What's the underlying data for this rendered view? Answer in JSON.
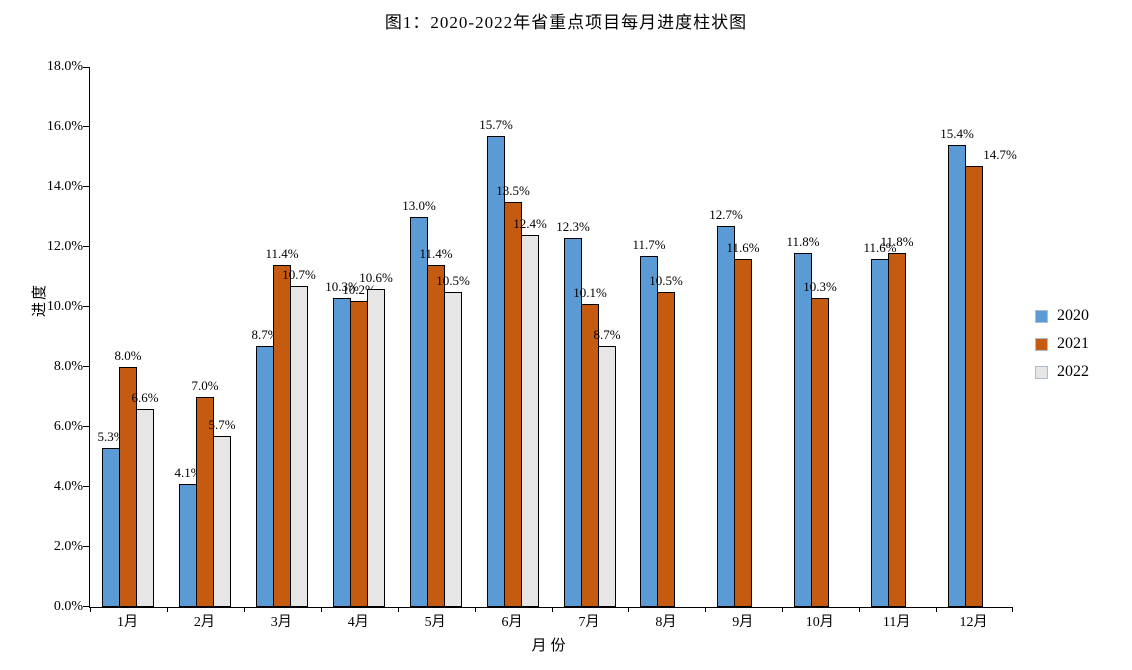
{
  "chart_data": {
    "type": "bar",
    "title": "图1：2020-2022年省重点项目每月进度柱状图",
    "xlabel": "月份",
    "ylabel": "进度",
    "categories": [
      "1月",
      "2月",
      "3月",
      "4月",
      "5月",
      "6月",
      "7月",
      "8月",
      "9月",
      "10月",
      "11月",
      "12月"
    ],
    "series": [
      {
        "name": "2020",
        "color": "#5B9BD5",
        "values": [
          5.3,
          4.1,
          8.7,
          10.3,
          13.0,
          15.7,
          12.3,
          11.7,
          12.7,
          11.8,
          11.6,
          15.4
        ]
      },
      {
        "name": "2021",
        "color": "#C55A11",
        "values": [
          8.0,
          7.0,
          11.4,
          10.2,
          11.4,
          13.5,
          10.1,
          10.5,
          11.6,
          10.3,
          11.8,
          14.7
        ]
      },
      {
        "name": "2022",
        "color": "#E7E6E6",
        "values": [
          6.6,
          5.7,
          10.7,
          10.6,
          10.5,
          12.4,
          8.7,
          null,
          null,
          null,
          null,
          null
        ]
      }
    ],
    "value_suffix": "%",
    "value_decimals": 1,
    "ylim": [
      0,
      18
    ],
    "y_tick_step": 2,
    "y_tick_labels": [
      "0.0%",
      "2.0%",
      "4.0%",
      "6.0%",
      "8.0%",
      "10.0%",
      "12.0%",
      "14.0%",
      "16.0%",
      "18.0%"
    ],
    "grid": false,
    "legend_position": "right",
    "bar_border_color": "#000000",
    "label_adjustments": [
      {
        "series": 1,
        "index": 11,
        "dx": 26,
        "dy": 0
      }
    ]
  },
  "colors": {
    "background": "#ffffff",
    "axis": "#000000",
    "text": "#000000",
    "legend_swatch_border": "#aabdd6"
  }
}
